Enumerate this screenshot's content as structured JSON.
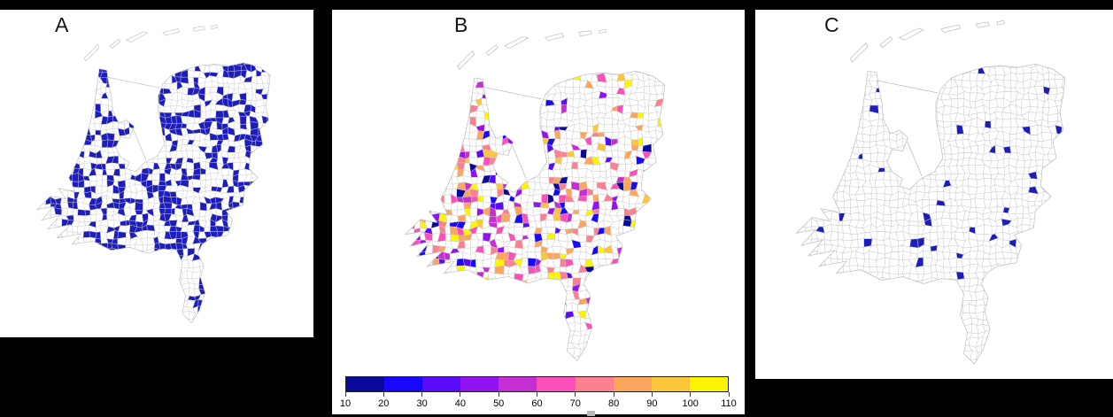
{
  "figure": {
    "background_color": "#000000",
    "panel_background": "#ffffff",
    "outline_color": "#bdbdbd",
    "cell_border_color": "#cccccc"
  },
  "panels": [
    {
      "label": "A",
      "kind": "binary-choropleth",
      "fill_color": "#1d1dbe",
      "fill_rate": 0.27
    },
    {
      "label": "B",
      "kind": "value-choropleth",
      "fill_rate": 0.32
    },
    {
      "label": "C",
      "kind": "binary-choropleth",
      "fill_color": "#1d1dbe",
      "fill_rate": 0.028
    }
  ],
  "colorbar": {
    "min": 10,
    "max": 110,
    "tick_labels": [
      "10",
      "20",
      "30",
      "40",
      "50",
      "60",
      "70",
      "80",
      "90",
      "100",
      "110"
    ],
    "colors": [
      "#08089b",
      "#1708fc",
      "#5a0cf8",
      "#9213f0",
      "#c42ed2",
      "#fb50ba",
      "#fb8191",
      "#fca55e",
      "#fcc63b",
      "#fbf503"
    ]
  }
}
